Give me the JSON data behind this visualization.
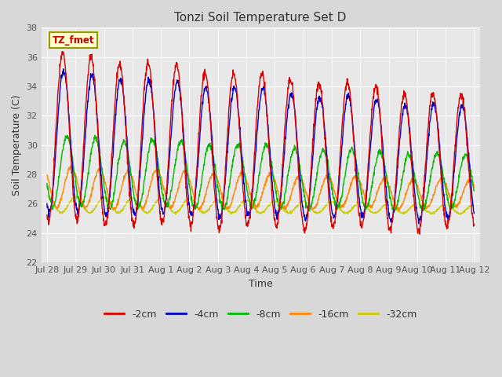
{
  "title": "Tonzi Soil Temperature Set D",
  "xlabel": "Time",
  "ylabel": "Soil Temperature (C)",
  "ylim": [
    22,
    38
  ],
  "yticks": [
    22,
    24,
    26,
    28,
    30,
    32,
    34,
    36,
    38
  ],
  "annotation": "TZ_fmet",
  "colors": {
    "-2cm": "#dd0000",
    "-4cm": "#0000cc",
    "-8cm": "#00bb00",
    "-16cm": "#ff8800",
    "-32cm": "#cccc00"
  },
  "legend_labels": [
    "-2cm",
    "-4cm",
    "-8cm",
    "-16cm",
    "-32cm"
  ],
  "fig_bg_color": "#d8d8d8",
  "plot_bg_color": "#e8e8e8",
  "x_tick_labels": [
    "Jul 28",
    "Jul 29",
    "Jul 30",
    "Jul 31",
    "Aug 1",
    "Aug 2",
    "Aug 3",
    "Aug 4",
    "Aug 5",
    "Aug 6",
    "Aug 7",
    "Aug 8",
    "Aug 9",
    "Aug 10",
    "Aug 11",
    "Aug 12"
  ],
  "line_width": 1.0,
  "num_days": 15,
  "samples_per_day": 96
}
